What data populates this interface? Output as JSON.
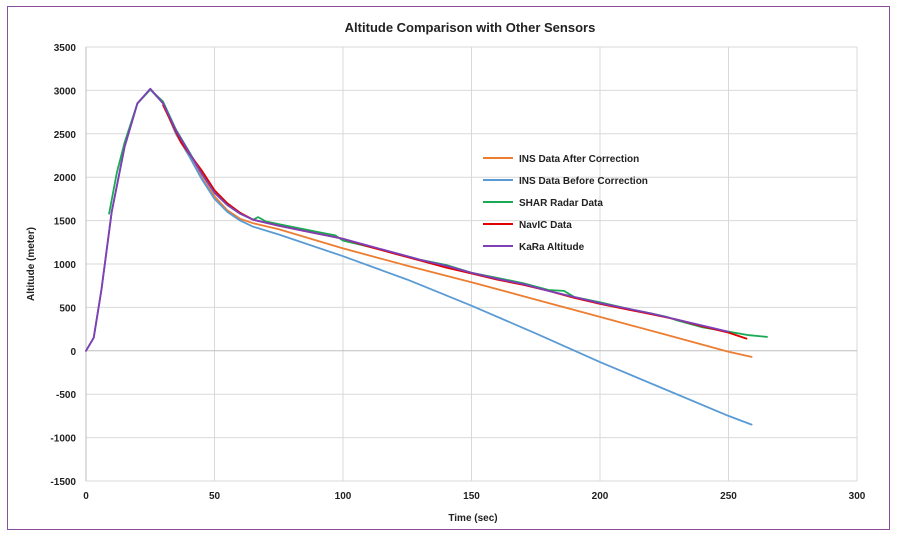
{
  "chart_data": {
    "type": "line",
    "title": "Altitude Comparison with Other Sensors",
    "xlabel": "Time (sec)",
    "ylabel": "Altitude (meter)",
    "xlim": [
      0,
      300
    ],
    "ylim": [
      -1500,
      3500
    ],
    "x_ticks": [
      0,
      50,
      100,
      150,
      200,
      250,
      300
    ],
    "y_ticks": [
      -1500,
      -1000,
      -500,
      0,
      500,
      1000,
      1500,
      2000,
      2500,
      3000,
      3500
    ],
    "grid": "on",
    "legend_position": "inside-right",
    "series": [
      {
        "name": "INS Data After Correction",
        "color": "#ED7D31",
        "points": [
          [
            0,
            0
          ],
          [
            3,
            150
          ],
          [
            6,
            700
          ],
          [
            10,
            1600
          ],
          [
            15,
            2350
          ],
          [
            20,
            2850
          ],
          [
            25,
            3010
          ],
          [
            30,
            2850
          ],
          [
            35,
            2500
          ],
          [
            40,
            2250
          ],
          [
            45,
            2000
          ],
          [
            50,
            1780
          ],
          [
            55,
            1620
          ],
          [
            60,
            1520
          ],
          [
            65,
            1470
          ],
          [
            75,
            1400
          ],
          [
            100,
            1180
          ],
          [
            125,
            980
          ],
          [
            150,
            790
          ],
          [
            175,
            590
          ],
          [
            200,
            390
          ],
          [
            225,
            190
          ],
          [
            250,
            -10
          ],
          [
            259,
            -70
          ]
        ]
      },
      {
        "name": "INS Data Before Correction",
        "color": "#5B9BD5",
        "points": [
          [
            0,
            0
          ],
          [
            3,
            150
          ],
          [
            6,
            700
          ],
          [
            10,
            1600
          ],
          [
            15,
            2350
          ],
          [
            20,
            2850
          ],
          [
            25,
            3010
          ],
          [
            30,
            2850
          ],
          [
            35,
            2500
          ],
          [
            40,
            2250
          ],
          [
            45,
            1980
          ],
          [
            50,
            1750
          ],
          [
            55,
            1600
          ],
          [
            60,
            1500
          ],
          [
            65,
            1430
          ],
          [
            75,
            1340
          ],
          [
            100,
            1090
          ],
          [
            125,
            820
          ],
          [
            150,
            520
          ],
          [
            175,
            200
          ],
          [
            200,
            -130
          ],
          [
            225,
            -440
          ],
          [
            250,
            -750
          ],
          [
            259,
            -850
          ]
        ]
      },
      {
        "name": "SHAR Radar Data",
        "color": "#1AAA55",
        "points": [
          [
            9,
            1580
          ],
          [
            12,
            2050
          ],
          [
            15,
            2400
          ],
          [
            20,
            2850
          ],
          [
            25,
            3010
          ],
          [
            30,
            2870
          ],
          [
            35,
            2550
          ],
          [
            40,
            2300
          ],
          [
            45,
            2050
          ],
          [
            50,
            1820
          ],
          [
            55,
            1680
          ],
          [
            60,
            1580
          ],
          [
            65,
            1510
          ],
          [
            67,
            1540
          ],
          [
            70,
            1490
          ],
          [
            80,
            1430
          ],
          [
            90,
            1370
          ],
          [
            97,
            1330
          ],
          [
            100,
            1270
          ],
          [
            110,
            1200
          ],
          [
            120,
            1130
          ],
          [
            130,
            1050
          ],
          [
            140,
            990
          ],
          [
            150,
            900
          ],
          [
            160,
            840
          ],
          [
            170,
            780
          ],
          [
            180,
            700
          ],
          [
            186,
            690
          ],
          [
            190,
            620
          ],
          [
            200,
            560
          ],
          [
            210,
            490
          ],
          [
            220,
            430
          ],
          [
            226,
            390
          ],
          [
            230,
            350
          ],
          [
            240,
            270
          ],
          [
            250,
            220
          ],
          [
            258,
            180
          ],
          [
            265,
            160
          ]
        ]
      },
      {
        "name": "NavIC Data",
        "color": "#E00000",
        "points": [
          [
            30,
            2830
          ],
          [
            37,
            2400
          ],
          [
            45,
            2080
          ],
          [
            50,
            1850
          ],
          [
            55,
            1700
          ],
          [
            60,
            1590
          ],
          [
            65,
            1510
          ],
          [
            75,
            1440
          ],
          [
            85,
            1380
          ],
          [
            100,
            1290
          ],
          [
            110,
            1200
          ],
          [
            120,
            1120
          ],
          [
            130,
            1040
          ],
          [
            140,
            960
          ],
          [
            150,
            890
          ],
          [
            160,
            820
          ],
          [
            170,
            760
          ],
          [
            180,
            690
          ],
          [
            190,
            610
          ],
          [
            200,
            540
          ],
          [
            210,
            480
          ],
          [
            220,
            420
          ],
          [
            230,
            360
          ],
          [
            240,
            280
          ],
          [
            250,
            210
          ],
          [
            257,
            140
          ]
        ]
      },
      {
        "name": "KaRa Altitude",
        "color": "#7E3FB8",
        "points": [
          [
            0,
            0
          ],
          [
            3,
            150
          ],
          [
            6,
            700
          ],
          [
            10,
            1600
          ],
          [
            15,
            2350
          ],
          [
            20,
            2850
          ],
          [
            25,
            3020
          ],
          [
            30,
            2850
          ],
          [
            35,
            2540
          ],
          [
            40,
            2290
          ],
          [
            45,
            2040
          ],
          [
            50,
            1820
          ],
          [
            55,
            1680
          ],
          [
            60,
            1580
          ],
          [
            65,
            1510
          ],
          [
            75,
            1440
          ],
          [
            85,
            1380
          ],
          [
            100,
            1290
          ],
          [
            110,
            1210
          ],
          [
            120,
            1130
          ],
          [
            130,
            1050
          ],
          [
            140,
            980
          ],
          [
            150,
            900
          ],
          [
            160,
            830
          ],
          [
            170,
            770
          ],
          [
            180,
            690
          ],
          [
            190,
            620
          ],
          [
            200,
            550
          ],
          [
            210,
            490
          ],
          [
            220,
            430
          ],
          [
            230,
            360
          ],
          [
            240,
            290
          ],
          [
            250,
            220
          ]
        ]
      }
    ]
  }
}
